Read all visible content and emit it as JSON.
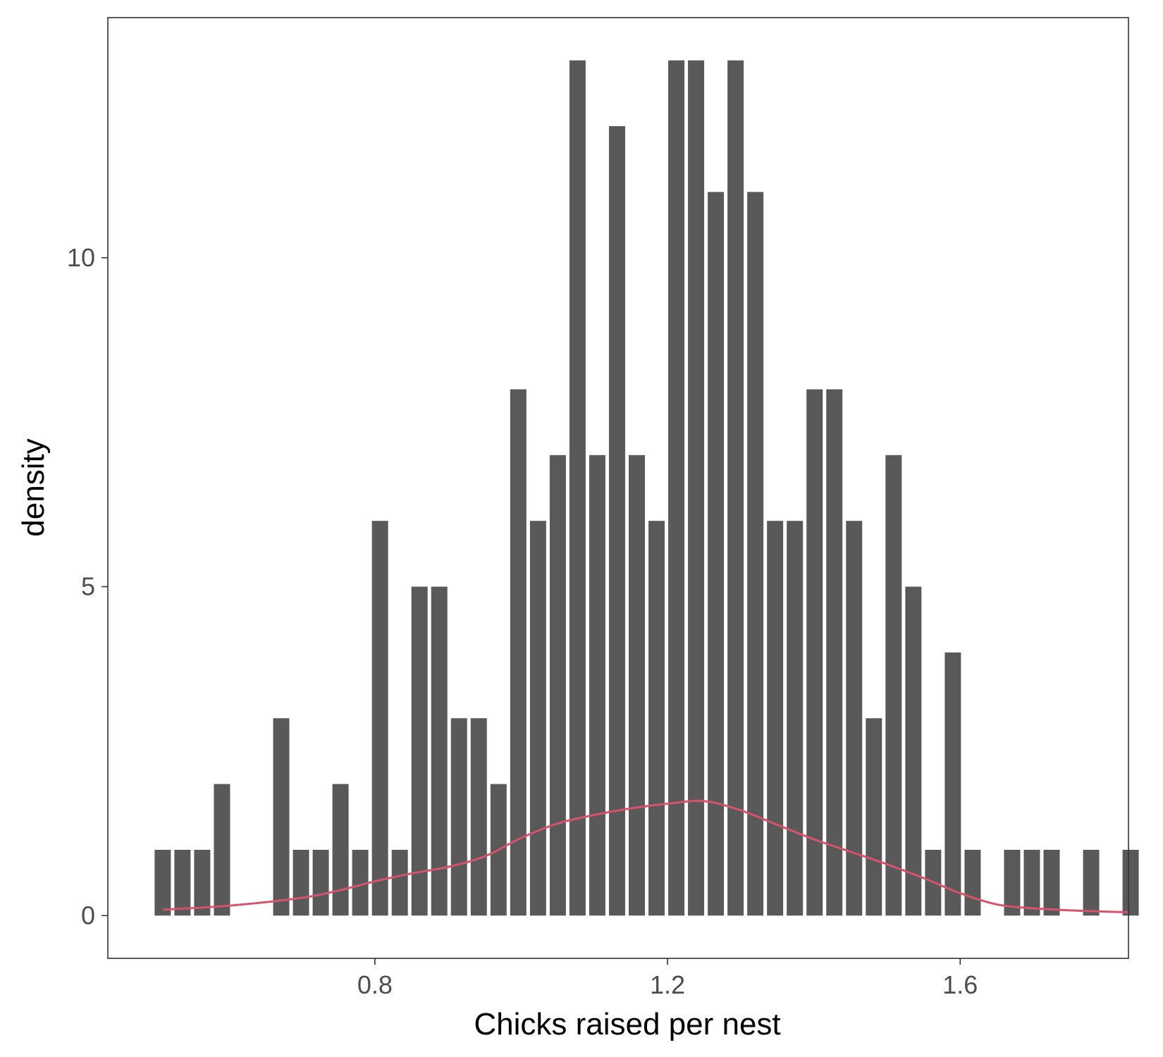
{
  "chart_data": {
    "type": "bar",
    "title": "",
    "xlabel": "Chicks raised per nest",
    "ylabel": "density",
    "x_ticks": [
      0.8,
      1.2,
      1.6
    ],
    "x_tick_labels": [
      "0.8",
      "1.2",
      "1.6"
    ],
    "y_ticks": [
      0,
      5,
      10
    ],
    "y_tick_labels": [
      "0",
      "5",
      "10"
    ],
    "xlim": [
      0.435,
      1.83
    ],
    "ylim": [
      -0.65,
      13.65
    ],
    "grid": false,
    "bar_color": "#595959",
    "line_color": "#d6536d",
    "bars": {
      "x": [
        0.51,
        0.537,
        0.564,
        0.591,
        0.672,
        0.699,
        0.726,
        0.753,
        0.78,
        0.807,
        0.834,
        0.861,
        0.888,
        0.915,
        0.942,
        0.969,
        0.996,
        1.023,
        1.05,
        1.077,
        1.104,
        1.131,
        1.158,
        1.185,
        1.212,
        1.239,
        1.266,
        1.293,
        1.32,
        1.347,
        1.374,
        1.401,
        1.428,
        1.455,
        1.482,
        1.509,
        1.536,
        1.563,
        1.59,
        1.617,
        1.671,
        1.698,
        1.725,
        1.779,
        1.833
      ],
      "values": [
        1,
        1,
        1,
        2,
        3,
        1,
        1,
        2,
        1,
        6,
        1,
        5,
        5,
        3,
        3,
        2,
        8,
        6,
        7,
        13,
        7,
        12,
        7,
        6,
        13,
        13,
        11,
        13,
        11,
        6,
        6,
        8,
        8,
        6,
        3,
        7,
        5,
        1,
        4,
        1,
        1,
        1,
        1,
        1,
        1
      ]
    },
    "density_curve": {
      "x": [
        0.51,
        0.6,
        0.7,
        0.75,
        0.8,
        0.85,
        0.9,
        0.95,
        1.0,
        1.05,
        1.1,
        1.15,
        1.2,
        1.25,
        1.3,
        1.35,
        1.4,
        1.45,
        1.5,
        1.55,
        1.6,
        1.65,
        1.7,
        1.75,
        1.8,
        1.83
      ],
      "y": [
        0.09,
        0.15,
        0.27,
        0.38,
        0.52,
        0.64,
        0.74,
        0.9,
        1.18,
        1.4,
        1.53,
        1.63,
        1.7,
        1.74,
        1.6,
        1.38,
        1.16,
        0.97,
        0.78,
        0.57,
        0.34,
        0.17,
        0.11,
        0.08,
        0.06,
        0.05
      ]
    }
  }
}
